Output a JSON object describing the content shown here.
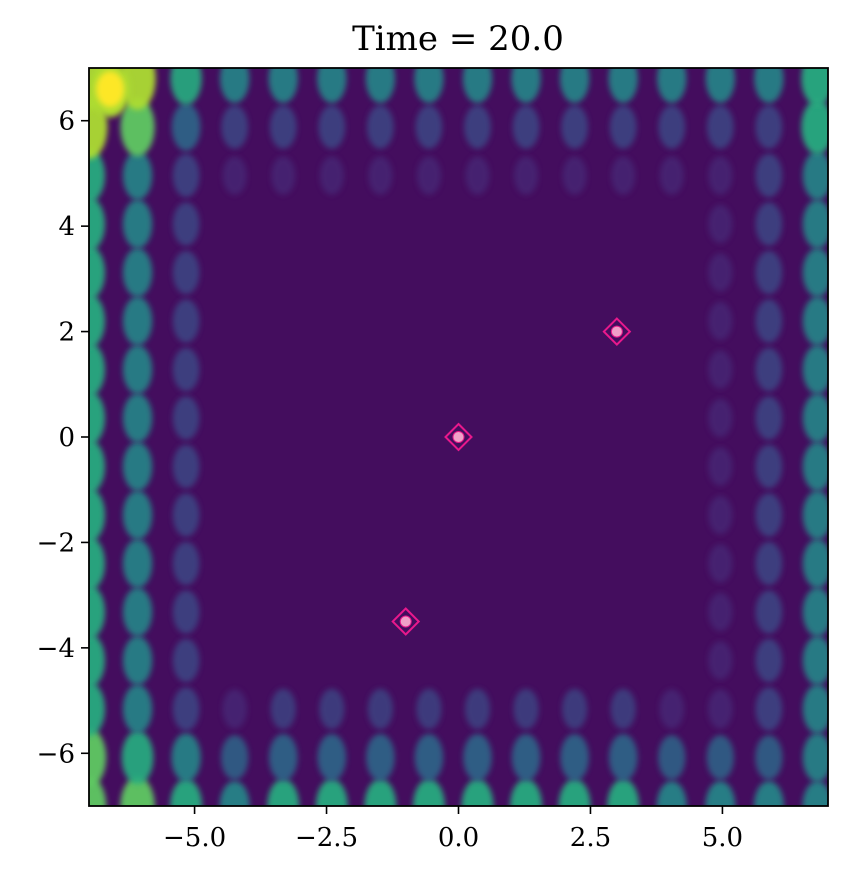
{
  "chart_data": {
    "type": "heatmap",
    "title": "Time = 20.0",
    "xlabel": "",
    "ylabel": "",
    "xlim": [
      -7,
      7
    ],
    "ylim": [
      -7,
      7
    ],
    "xticks": [
      -5.0,
      -2.5,
      0.0,
      2.5,
      5.0
    ],
    "xtick_labels": [
      "−5.0",
      "−2.5",
      "0.0",
      "2.5",
      "5.0"
    ],
    "yticks": [
      -6,
      -4,
      -2,
      0,
      2,
      4,
      6
    ],
    "ytick_labels": [
      "−6",
      "−4",
      "−2",
      "0",
      "2",
      "4",
      "6"
    ],
    "colormap": "viridis",
    "background_color": "#440d5e",
    "grid": false,
    "legend": "none",
    "markers": [
      {
        "x": 3.0,
        "y": 2.0
      },
      {
        "x": 0.0,
        "y": 0.0
      },
      {
        "x": -1.0,
        "y": -3.5
      }
    ],
    "marker_style": {
      "shape": "diamond-with-dot",
      "edge_color": "#e8188c",
      "fill_color": "#f0a0c8"
    }
  }
}
